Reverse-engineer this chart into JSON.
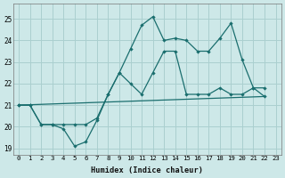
{
  "xlabel": "Humidex (Indice chaleur)",
  "xlim": [
    -0.5,
    23.5
  ],
  "ylim": [
    18.7,
    25.7
  ],
  "yticks": [
    19,
    20,
    21,
    22,
    23,
    24,
    25
  ],
  "xticks": [
    0,
    1,
    2,
    3,
    4,
    5,
    6,
    7,
    8,
    9,
    10,
    11,
    12,
    13,
    14,
    15,
    16,
    17,
    18,
    19,
    20,
    21,
    22,
    23
  ],
  "bg_color": "#cde8e8",
  "line_color": "#1a6e6e",
  "grid_color": "#aacfcf",
  "lines": [
    {
      "x": [
        0,
        1,
        2,
        3,
        4,
        5,
        6,
        7,
        8,
        9,
        10,
        11,
        12,
        13,
        14,
        15,
        16,
        17,
        18,
        19,
        20,
        21,
        22
      ],
      "y": [
        21.0,
        21.0,
        20.1,
        20.1,
        19.9,
        19.1,
        19.3,
        20.3,
        21.5,
        22.5,
        22.0,
        21.5,
        22.5,
        23.5,
        23.5,
        21.5,
        21.5,
        21.5,
        21.8,
        21.5,
        21.5,
        21.8,
        21.4
      ],
      "has_markers": true
    },
    {
      "x": [
        0,
        22
      ],
      "y": [
        21.0,
        21.4
      ],
      "has_markers": false
    },
    {
      "x": [
        0,
        1,
        2,
        3,
        4,
        5,
        6,
        7,
        8,
        9,
        10,
        11,
        12,
        13,
        14,
        15,
        16,
        17,
        18,
        19,
        20,
        21,
        22
      ],
      "y": [
        21.0,
        21.0,
        20.1,
        20.1,
        20.1,
        20.1,
        20.1,
        20.4,
        21.5,
        22.5,
        23.6,
        24.7,
        25.1,
        24.0,
        24.1,
        24.0,
        23.5,
        23.5,
        24.1,
        24.8,
        23.1,
        21.8,
        21.8
      ],
      "has_markers": true
    }
  ]
}
